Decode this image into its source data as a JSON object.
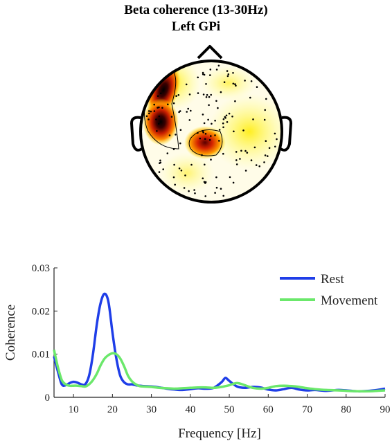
{
  "figure": {
    "title_line1": "Beta coherence (13-30Hz)",
    "title_line2": "Left GPi"
  },
  "colors": {
    "rest": "#1f3ee8",
    "movement": "#6be86b",
    "axis": "#222222"
  },
  "chart_data": [
    {
      "type": "heatmap",
      "subtype": "scalp-topography",
      "colormap": "hot (white = low, yellow, red, black = high)",
      "hotspots": [
        {
          "location": "left frontal",
          "intensity": "high"
        },
        {
          "location": "left fronto-temporal",
          "intensity": "highest"
        },
        {
          "location": "central",
          "intensity": "medium-high"
        }
      ]
    },
    {
      "type": "line",
      "xlabel": "Frequency [Hz]",
      "ylabel": "Coherence",
      "xlim": [
        5,
        90
      ],
      "ylim": [
        0,
        0.03
      ],
      "xticks": [
        "10",
        "20",
        "30",
        "40",
        "50",
        "60",
        "70",
        "80",
        "90"
      ],
      "yticks": [
        "0",
        "0.01",
        "0.02",
        "0.03"
      ],
      "legend_position": "top-right",
      "x": [
        5,
        6,
        7,
        8,
        9,
        10,
        11,
        12,
        13,
        14,
        15,
        16,
        17,
        18,
        19,
        20,
        21,
        22,
        23,
        24,
        25,
        26,
        27,
        28,
        30,
        32,
        34,
        36,
        38,
        40,
        42,
        44,
        46,
        48,
        49,
        50,
        52,
        54,
        56,
        58,
        60,
        62,
        64,
        66,
        68,
        70,
        72,
        75,
        78,
        80,
        83,
        86,
        88,
        90
      ],
      "series": [
        {
          "name": "Rest",
          "values": [
            0.0095,
            0.006,
            0.003,
            0.0028,
            0.0033,
            0.0036,
            0.0034,
            0.003,
            0.003,
            0.005,
            0.01,
            0.017,
            0.022,
            0.024,
            0.022,
            0.015,
            0.009,
            0.005,
            0.0035,
            0.003,
            0.003,
            0.0028,
            0.0027,
            0.0026,
            0.0025,
            0.0023,
            0.002,
            0.0018,
            0.0017,
            0.0019,
            0.0021,
            0.002,
            0.0022,
            0.0035,
            0.0045,
            0.0038,
            0.0025,
            0.0022,
            0.0024,
            0.0023,
            0.0018,
            0.0016,
            0.0019,
            0.0022,
            0.0018,
            0.0016,
            0.0017,
            0.0015,
            0.0017,
            0.0016,
            0.0014,
            0.0015,
            0.0017,
            0.002
          ]
        },
        {
          "name": "Movement",
          "values": [
            0.011,
            0.007,
            0.004,
            0.003,
            0.0027,
            0.0027,
            0.0027,
            0.0026,
            0.0025,
            0.003,
            0.004,
            0.0055,
            0.0075,
            0.009,
            0.0098,
            0.0102,
            0.01,
            0.009,
            0.0072,
            0.005,
            0.0037,
            0.003,
            0.0026,
            0.0025,
            0.0024,
            0.0022,
            0.0021,
            0.002,
            0.0021,
            0.0022,
            0.0023,
            0.0023,
            0.0022,
            0.0024,
            0.0026,
            0.0028,
            0.0033,
            0.0028,
            0.0022,
            0.002,
            0.0022,
            0.0026,
            0.0027,
            0.0026,
            0.0024,
            0.0021,
            0.0019,
            0.0017,
            0.0016,
            0.0015,
            0.0014,
            0.0014,
            0.0015,
            0.0016
          ]
        }
      ]
    }
  ]
}
